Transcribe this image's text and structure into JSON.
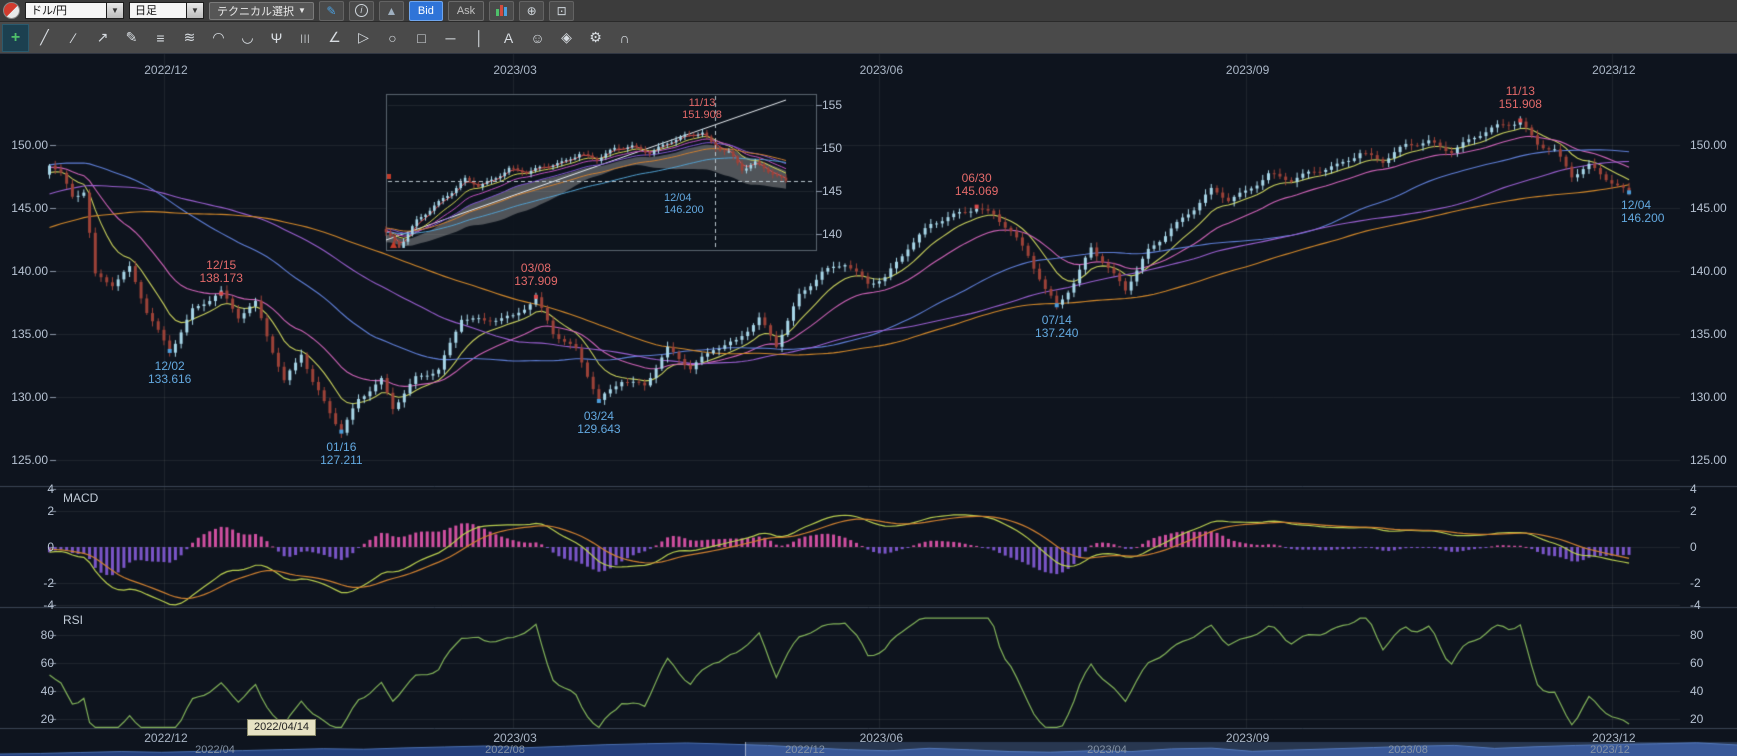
{
  "toolbar": {
    "pair": "ドル/円",
    "timeframe": "日足",
    "technical": "テクニカル選択",
    "bid": "Bid",
    "ask": "Ask"
  },
  "icons": {
    "dropdown_arrow": "▼",
    "pencil": "✎",
    "info": "i",
    "area_chart": "▲",
    "zoom_in": "⊕",
    "zoom_box": "⊡"
  },
  "draw_tools": [
    {
      "name": "add-drawing-tool",
      "glyph": "+"
    },
    {
      "name": "trendline-tool",
      "glyph": "╱"
    },
    {
      "name": "extended-line-tool",
      "glyph": "∕"
    },
    {
      "name": "ray-line-tool",
      "glyph": "↗"
    },
    {
      "name": "freehand-pencil-tool",
      "glyph": "✎"
    },
    {
      "name": "parallel-lines-tool",
      "glyph": "≡"
    },
    {
      "name": "fibonacci-retracement-tool",
      "glyph": "≋"
    },
    {
      "name": "fibonacci-arc-tool",
      "glyph": "◠"
    },
    {
      "name": "arc-tool",
      "glyph": "◡"
    },
    {
      "name": "pitchfork-tool",
      "glyph": "Ψ"
    },
    {
      "name": "fib-timezone-tool",
      "glyph": "|||",
      "small": true
    },
    {
      "name": "angle-tool",
      "glyph": "∠"
    },
    {
      "name": "polygon-tool",
      "glyph": "▷"
    },
    {
      "name": "ellipse-tool",
      "glyph": "○"
    },
    {
      "name": "rectangle-tool",
      "glyph": "□"
    },
    {
      "name": "horizontal-line-tool",
      "glyph": "─"
    },
    {
      "name": "vertical-line-tool",
      "glyph": "│"
    },
    {
      "name": "text-tool",
      "glyph": "A"
    },
    {
      "name": "icon-stamp-tool",
      "glyph": "☺"
    },
    {
      "name": "eraser-tool",
      "glyph": "◈"
    },
    {
      "name": "settings-tool",
      "glyph": "⚙"
    },
    {
      "name": "magnet-tool",
      "glyph": "∩"
    }
  ],
  "panels": {
    "macd_label": "MACD",
    "rsi_label": "RSI"
  },
  "axes": {
    "price_ticks": [
      "150.00",
      "145.00",
      "140.00",
      "135.00",
      "130.00",
      "125.00"
    ],
    "price_values": [
      150,
      145,
      140,
      135,
      130,
      125
    ],
    "macd_ticks": [
      "4",
      "2",
      "0",
      "-2",
      "-4"
    ],
    "macd_values": [
      4,
      2,
      0,
      -2,
      -4
    ],
    "rsi_ticks": [
      "80",
      "60",
      "40",
      "20"
    ],
    "rsi_values": [
      80,
      60,
      40,
      20
    ],
    "month_labels": [
      "2022/12",
      "2023/03",
      "2023/06",
      "2023/09",
      "2023/12"
    ],
    "nav_labels": [
      "2022/04",
      "2022/08",
      "2022/12",
      "2023/04",
      "2023/08",
      "2023/12"
    ]
  },
  "tooltip": {
    "text": "2022/04/14"
  },
  "inset": {
    "y_ticks": [
      "155",
      "150",
      "145",
      "140"
    ],
    "y_values": [
      155,
      150,
      145,
      140
    ],
    "annotations": [
      {
        "date": "11/13",
        "value": "151.908",
        "kind": "high"
      },
      {
        "date": "12/04",
        "value": "146.200",
        "kind": "low"
      }
    ],
    "lines": [
      {
        "name": "ema3",
        "period": 3,
        "color": "#e05050"
      },
      {
        "name": "ema8",
        "period": 8,
        "color": "#d0d050"
      },
      {
        "name": "ema13",
        "period": 13,
        "color": "#c050c0"
      },
      {
        "name": "ema21",
        "period": 21,
        "color": "#8055d0"
      },
      {
        "name": "ema34",
        "period": 34,
        "color": "#d08030"
      },
      {
        "name": "ema55",
        "period": 55,
        "color": "#50a0d0"
      }
    ]
  },
  "colors": {
    "bull": "#a7d6e8",
    "bear": "#9c4238",
    "grid": "rgba(255,255,255,0.07)",
    "macd_pos": "#cf4fa0",
    "macd_neg": "#7a55c8",
    "macd_line": "#b9cf4f",
    "macd_signal": "#d08030",
    "rsi_line": "#82b35a",
    "nav_fill": "#24407c",
    "nav_stroke": "#4a6fb0",
    "annotation_high": "#e46a6a",
    "annotation_low": "#63a9e0"
  },
  "overlays": [
    {
      "name": "ema9",
      "type": "ema",
      "period": 9,
      "color": "#c9d15c"
    },
    {
      "name": "ema21",
      "type": "ema",
      "period": 21,
      "color": "#cf63b8"
    },
    {
      "name": "sma50",
      "type": "sma",
      "period": 50,
      "color": "#5f7fd8"
    },
    {
      "name": "sma75",
      "type": "sma",
      "period": 75,
      "color": "#9a5fd0"
    },
    {
      "name": "sma100",
      "type": "sma",
      "period": 100,
      "color": "#d2882a"
    }
  ],
  "chart_data": {
    "type": "candlestick",
    "symbol": "ドル/円",
    "interval": "日足",
    "quote_side": "Bid",
    "x_axis": {
      "labels": [
        "2022/12",
        "2023/03",
        "2023/06",
        "2023/09",
        "2023/12"
      ],
      "grid_days": [
        20,
        81,
        145,
        209,
        273
      ]
    },
    "y_axis": {
      "ticks": [
        150,
        145,
        140,
        135,
        130,
        125
      ],
      "visible_range": [
        123.2,
        157.5
      ]
    },
    "day_count": 277,
    "swings": [
      {
        "date": "11/13",
        "price": 151.908,
        "text": "151.908",
        "day": 257,
        "kind": "high"
      },
      {
        "date": "12/04",
        "price": 146.2,
        "text": "146.200",
        "day": 276,
        "kind": "low",
        "align": "right"
      },
      {
        "date": "06/30",
        "price": 145.069,
        "text": "145.069",
        "day": 162,
        "kind": "high"
      },
      {
        "date": "12/15",
        "price": 138.173,
        "text": "138.173",
        "day": 30,
        "kind": "high"
      },
      {
        "date": "03/08",
        "price": 137.909,
        "text": "137.909",
        "day": 85,
        "kind": "high"
      },
      {
        "date": "07/14",
        "price": 137.24,
        "text": "137.240",
        "day": 176,
        "kind": "low"
      },
      {
        "date": "12/02",
        "price": 133.616,
        "text": "133.616",
        "day": 21,
        "kind": "low"
      },
      {
        "date": "01/16",
        "price": 127.211,
        "text": "127.211",
        "day": 51,
        "kind": "low"
      },
      {
        "date": "03/24",
        "price": 129.643,
        "text": "129.643",
        "day": 96,
        "kind": "low"
      }
    ],
    "price_path_anchors": [
      [
        -110,
        131.5
      ],
      [
        -85,
        135.5
      ],
      [
        -60,
        142.0
      ],
      [
        -35,
        148.5
      ],
      [
        -22,
        151.7
      ],
      [
        -15,
        147.3
      ],
      [
        -8,
        149.8
      ],
      [
        -3,
        146.0
      ],
      [
        0,
        148.4
      ],
      [
        2,
        147.6
      ],
      [
        4,
        145.9
      ],
      [
        6,
        146.4
      ],
      [
        8,
        139.7
      ],
      [
        11,
        138.9
      ],
      [
        14,
        140.1
      ],
      [
        17,
        136.7
      ],
      [
        21,
        133.62
      ],
      [
        25,
        136.9
      ],
      [
        30,
        138.17
      ],
      [
        33,
        136.3
      ],
      [
        36,
        137.5
      ],
      [
        41,
        131.2
      ],
      [
        44,
        133.4
      ],
      [
        46,
        131.0
      ],
      [
        51,
        127.21
      ],
      [
        54,
        129.9
      ],
      [
        58,
        131.3
      ],
      [
        60,
        129.0
      ],
      [
        64,
        131.4
      ],
      [
        68,
        132.2
      ],
      [
        72,
        136.3
      ],
      [
        76,
        135.9
      ],
      [
        81,
        136.3
      ],
      [
        85,
        137.91
      ],
      [
        88,
        135.1
      ],
      [
        92,
        133.6
      ],
      [
        96,
        129.64
      ],
      [
        100,
        131.4
      ],
      [
        104,
        130.9
      ],
      [
        108,
        133.7
      ],
      [
        112,
        132.2
      ],
      [
        116,
        133.9
      ],
      [
        120,
        134.4
      ],
      [
        124,
        136.1
      ],
      [
        127,
        134.0
      ],
      [
        131,
        138.1
      ],
      [
        135,
        139.9
      ],
      [
        139,
        140.5
      ],
      [
        143,
        138.9
      ],
      [
        146,
        139.5
      ],
      [
        150,
        141.9
      ],
      [
        154,
        143.6
      ],
      [
        158,
        144.3
      ],
      [
        162,
        145.07
      ],
      [
        165,
        144.5
      ],
      [
        168,
        143.1
      ],
      [
        171,
        141.1
      ],
      [
        174,
        138.4
      ],
      [
        176,
        137.24
      ],
      [
        179,
        139.1
      ],
      [
        182,
        141.9
      ],
      [
        185,
        140.1
      ],
      [
        188,
        138.4
      ],
      [
        192,
        141.6
      ],
      [
        196,
        143.4
      ],
      [
        200,
        144.9
      ],
      [
        203,
        146.3
      ],
      [
        206,
        145.6
      ],
      [
        209,
        146.3
      ],
      [
        213,
        147.7
      ],
      [
        217,
        147.1
      ],
      [
        221,
        147.8
      ],
      [
        225,
        148.4
      ],
      [
        229,
        149.4
      ],
      [
        233,
        148.6
      ],
      [
        237,
        149.9
      ],
      [
        241,
        150.3
      ],
      [
        245,
        149.5
      ],
      [
        249,
        150.5
      ],
      [
        253,
        151.4
      ],
      [
        257,
        151.91
      ],
      [
        260,
        150.1
      ],
      [
        263,
        149.5
      ],
      [
        266,
        147.4
      ],
      [
        269,
        148.3
      ],
      [
        273,
        147.1
      ],
      [
        276,
        146.2
      ]
    ],
    "indicators": [
      {
        "name": "MACD",
        "y_ticks": [
          4,
          2,
          0,
          -2,
          -4
        ]
      },
      {
        "name": "RSI",
        "y_ticks": [
          80,
          60,
          40,
          20
        ]
      }
    ],
    "navigator": {
      "range_labels": [
        "2022/04",
        "2022/08",
        "2022/12",
        "2023/04",
        "2023/08",
        "2023/12"
      ],
      "path": [
        122.5,
        124,
        126.5,
        129,
        127,
        129.5,
        131.5,
        134,
        136.5,
        135,
        138.5,
        141,
        143.5,
        139,
        143,
        147,
        149.5,
        151.5,
        148.5,
        145,
        139,
        134,
        131,
        137.5,
        133.6,
        129,
        127.2,
        131,
        128.9,
        136,
        137.9,
        129.6,
        133,
        136.2,
        139.5,
        143,
        145.1,
        137.2,
        141.5,
        145,
        147.5,
        149.3,
        151.9,
        146.2
      ]
    }
  }
}
